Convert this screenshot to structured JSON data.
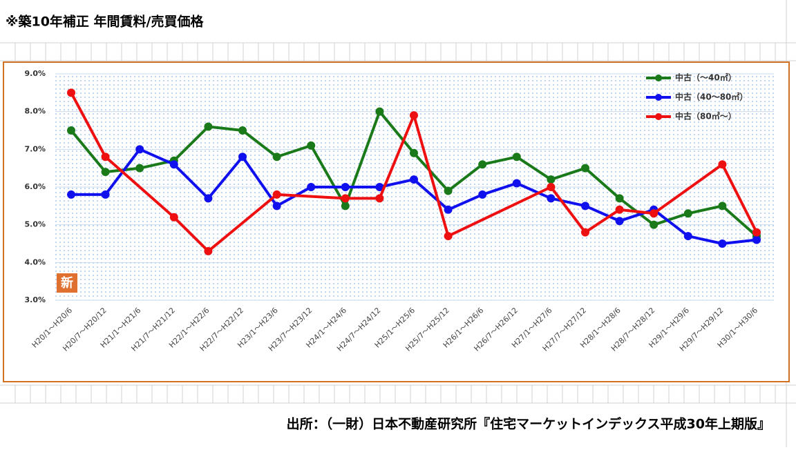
{
  "header": {
    "title": "※築10年補正 年間賃料/売買価格"
  },
  "chart_data": {
    "type": "line",
    "categories": [
      "H20/1～H20/6",
      "H20/7～H20/12",
      "H21/1～H21/6",
      "H21/7～H21/12",
      "H22/1～H22/6",
      "H22/7～H22/12",
      "H23/1～H23/6",
      "H23/7～H23/12",
      "H24/1～H24/6",
      "H24/7～H24/12",
      "H25/1～H25/6",
      "H25/7～H25/12",
      "H26/1～H26/6",
      "H26/7～H26/12",
      "H27/1～H27/6",
      "H27/7～H27/12",
      "H28/1～H28/6",
      "H28/7～H28/12",
      "H29/1～H29/6",
      "H29/7～H29/12",
      "H30/1～H30/6"
    ],
    "series": [
      {
        "name": "中古（～40㎡）",
        "color": "#1a7a1a",
        "values": [
          7.5,
          6.4,
          6.5,
          6.7,
          7.6,
          7.5,
          6.8,
          7.1,
          5.5,
          8.0,
          6.9,
          5.9,
          6.6,
          6.8,
          6.2,
          6.5,
          5.7,
          5.0,
          5.3,
          5.5,
          4.7
        ]
      },
      {
        "name": "中古（40～80㎡）",
        "color": "#1010ee",
        "values": [
          5.8,
          5.8,
          7.0,
          6.6,
          5.7,
          6.8,
          5.5,
          6.0,
          6.0,
          6.0,
          6.2,
          5.4,
          5.8,
          6.1,
          5.7,
          5.5,
          5.1,
          5.4,
          4.7,
          4.5,
          4.6
        ]
      },
      {
        "name": "中古（80㎡～）",
        "color": "#ee1010",
        "values": [
          8.5,
          6.8,
          null,
          5.2,
          4.3,
          null,
          5.8,
          null,
          5.7,
          5.7,
          7.9,
          4.7,
          null,
          null,
          6.0,
          4.8,
          5.4,
          5.3,
          null,
          6.6,
          4.8
        ]
      }
    ],
    "ylim": [
      3,
      9
    ],
    "yticks": [
      {
        "value": 3,
        "label": "3.0%"
      },
      {
        "value": 4,
        "label": "4.0%"
      },
      {
        "value": 5,
        "label": "5.0%"
      },
      {
        "value": 6,
        "label": "6.0%"
      },
      {
        "value": 7,
        "label": "7.0%"
      },
      {
        "value": 8,
        "label": "8.0%"
      },
      {
        "value": 9,
        "label": "9.0%"
      }
    ],
    "grid": true,
    "legend": "upper right",
    "badge": "新"
  },
  "footer": {
    "source": "出所：（一財）日本不動産研究所『住宅マーケットインデックス平成30年上期版』"
  }
}
